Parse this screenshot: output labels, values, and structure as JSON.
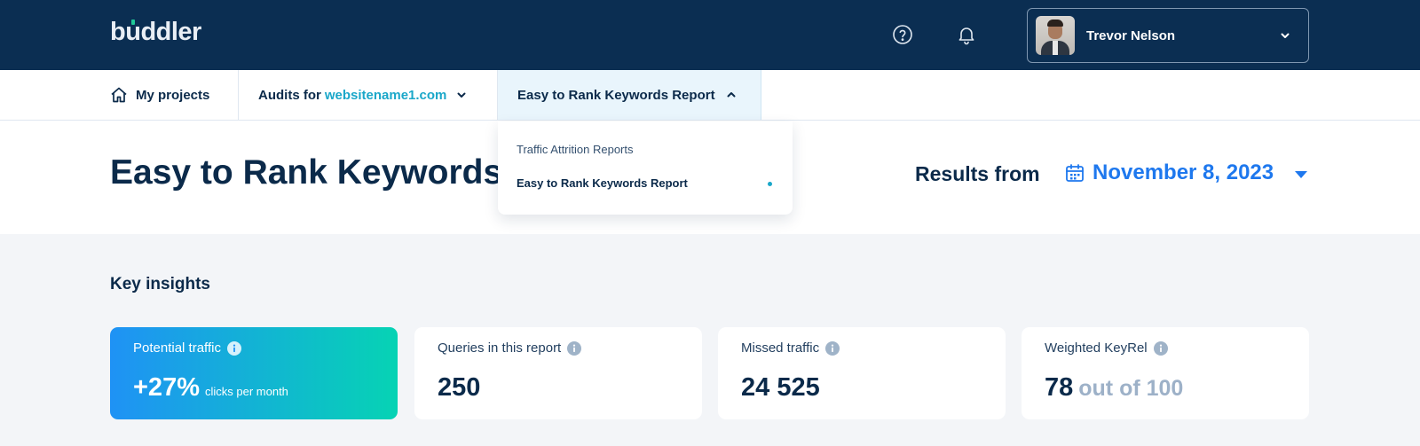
{
  "header": {
    "logo_text": "buddler",
    "user_name": "Trevor Nelson",
    "icons": [
      "help-icon",
      "bell-icon",
      "chevron-down-icon"
    ]
  },
  "breadcrumb": {
    "home_label": "My projects",
    "audits_prefix": "Audits for",
    "audits_site": "websitename1.com",
    "report_label": "Easy to Rank Keywords Report"
  },
  "dropdown": {
    "items": [
      {
        "label": "Traffic Attrition Reports",
        "selected": false
      },
      {
        "label": "Easy to Rank Keywords Report",
        "selected": true
      }
    ]
  },
  "page": {
    "title": "Easy to Rank Keywords",
    "results_label": "Results from",
    "results_date": "November 8, 2023"
  },
  "insights": {
    "title": "Key insights",
    "cards": [
      {
        "label": "Potential traffic",
        "value": "+27%",
        "sub": "clicks per month"
      },
      {
        "label": "Queries in this report",
        "value": "250"
      },
      {
        "label": "Missed traffic",
        "value": "24 525"
      },
      {
        "label": "Weighted KeyRel",
        "value": "78",
        "suffix": "out of 100"
      }
    ]
  },
  "colors": {
    "header_bg": "#0b2e52",
    "accent_blue": "#1e78ee",
    "accent_teal": "#1aa7c9",
    "gradient_start": "#1f92f5",
    "gradient_end": "#06d3b4"
  }
}
